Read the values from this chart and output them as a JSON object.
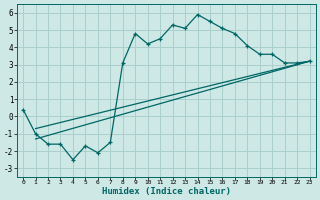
{
  "title": "",
  "xlabel": "Humidex (Indice chaleur)",
  "background_color": "#cde8e5",
  "grid_color": "#aacfcc",
  "line_color": "#006666",
  "xlim": [
    -0.5,
    23.5
  ],
  "ylim": [
    -3.5,
    6.5
  ],
  "xticks": [
    0,
    1,
    2,
    3,
    4,
    5,
    6,
    7,
    8,
    9,
    10,
    11,
    12,
    13,
    14,
    15,
    16,
    17,
    18,
    19,
    20,
    21,
    22,
    23
  ],
  "yticks": [
    -3,
    -2,
    -1,
    0,
    1,
    2,
    3,
    4,
    5,
    6
  ],
  "series1_x": [
    0,
    1,
    2,
    3,
    4,
    5,
    6,
    7,
    8,
    9,
    10,
    11,
    12,
    13,
    14,
    15,
    16,
    17,
    18,
    19,
    20,
    21,
    22,
    23
  ],
  "series1_y": [
    0.4,
    -1.0,
    -1.6,
    -1.6,
    -2.5,
    -1.7,
    -2.1,
    -1.5,
    3.1,
    4.8,
    4.2,
    4.5,
    5.3,
    5.1,
    5.9,
    5.5,
    5.1,
    4.8,
    4.1,
    3.6,
    3.6,
    3.1,
    3.1,
    3.2
  ],
  "series2_x": [
    1,
    23
  ],
  "series2_y": [
    -1.3,
    3.2
  ],
  "series3_x": [
    1,
    23
  ],
  "series3_y": [
    -0.7,
    3.2
  ],
  "marker": "+"
}
